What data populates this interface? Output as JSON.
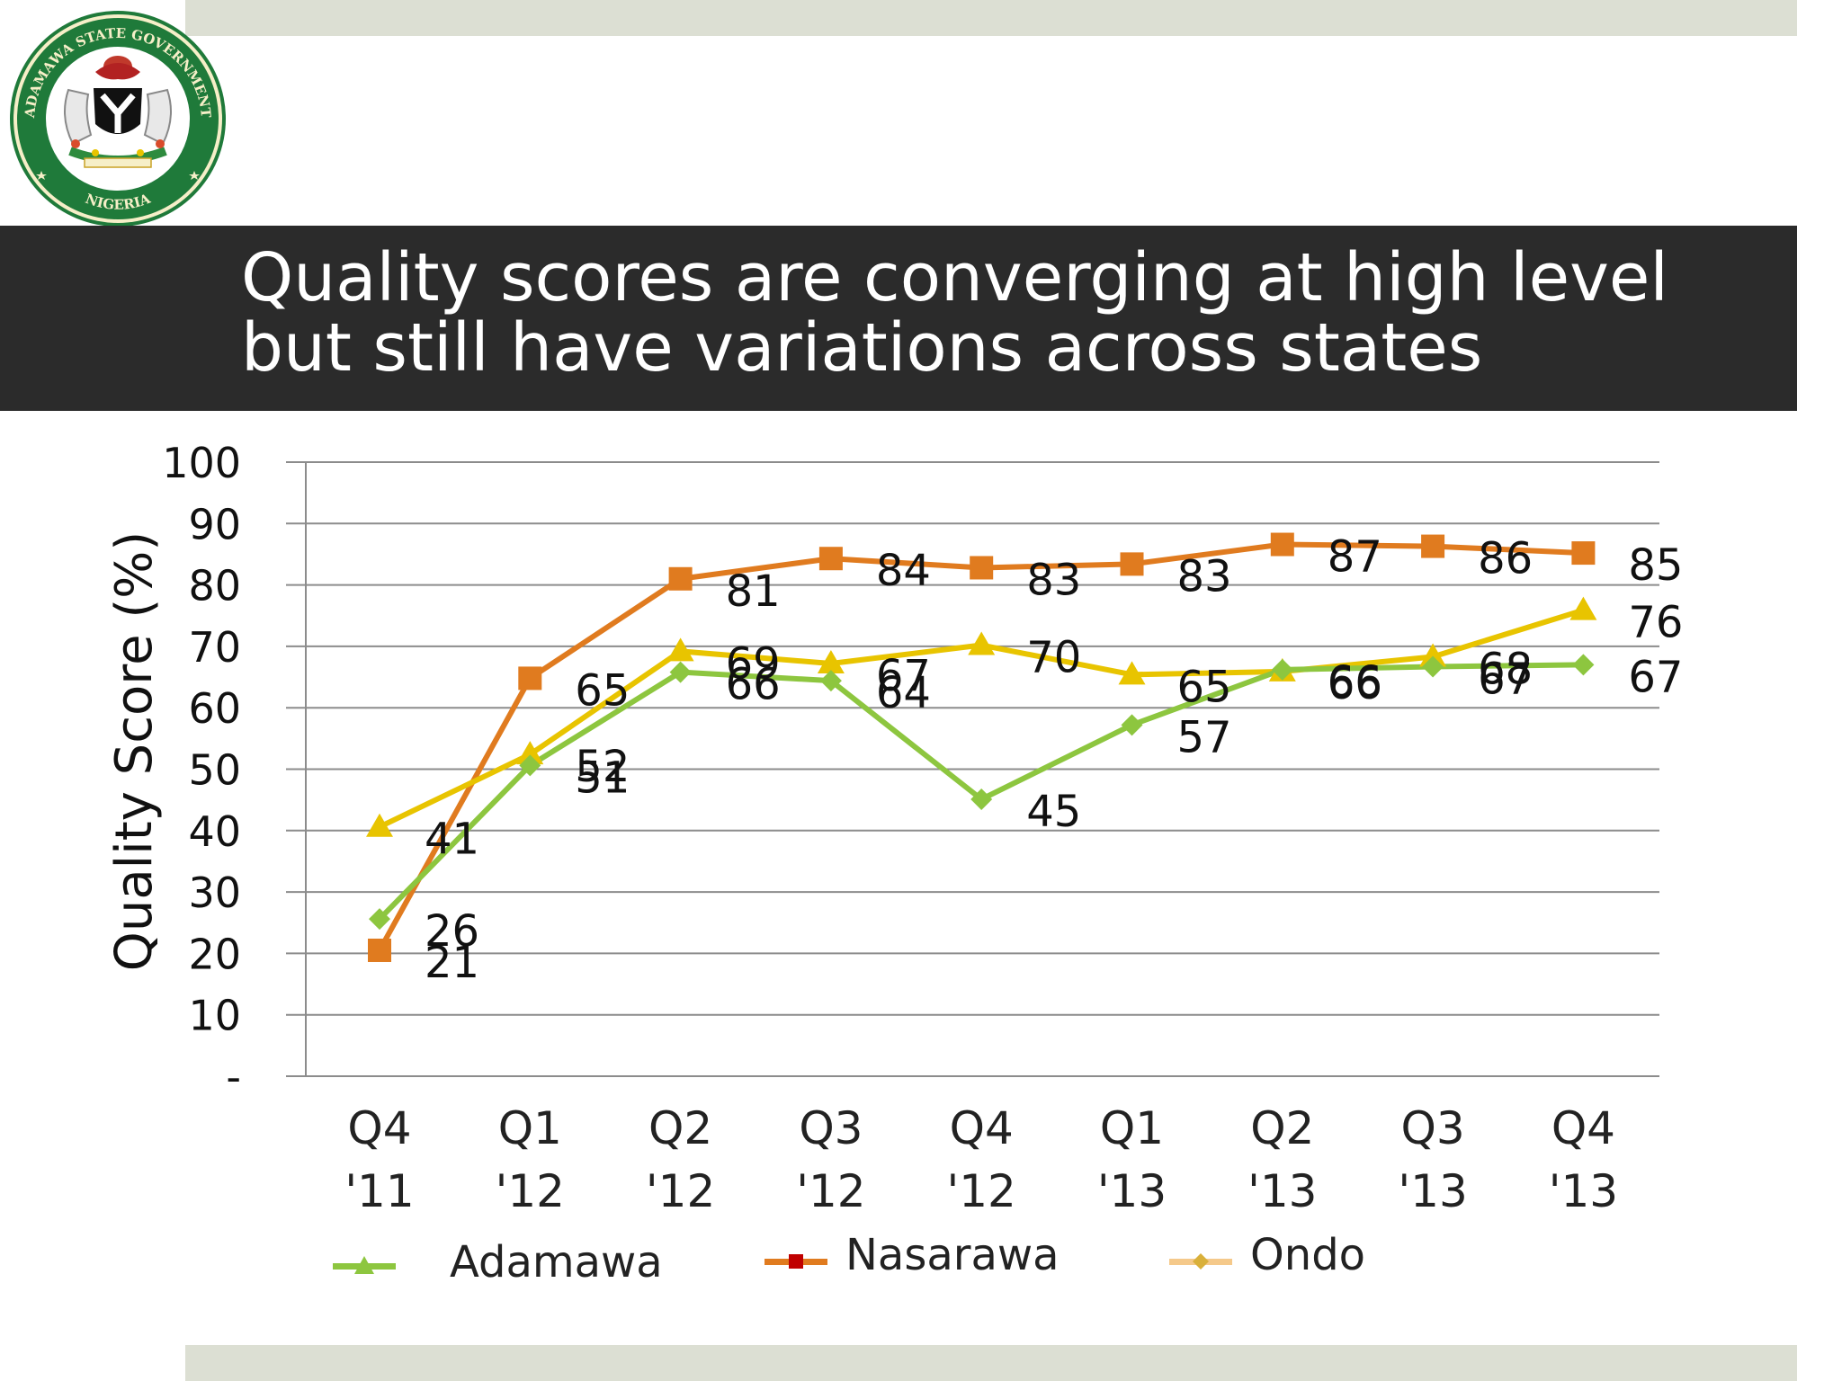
{
  "header": {
    "title": "Quality scores are converging at high level but still have variations across states",
    "seal_text_top": "ADAMAWA STATE GOVERNMENT",
    "seal_text_bottom": "NIGERIA"
  },
  "colors": {
    "title_bar": "#2b2b2b",
    "band": "#dcdfd3",
    "adamawa_line": "#8dc63f",
    "adamawa_marker": "#8dc63f",
    "nasarawa_line": "#e07b1f",
    "nasarawa_marker": "#e07b1f",
    "ondo_line": "#e8c400",
    "ondo_marker": "#e8c400",
    "legend_adamawa": "#8dc63f",
    "legend_nasarawa": "#e07b1f",
    "legend_nasarawa_marker": "#c00000",
    "legend_ondo": "#f5c98a",
    "legend_ondo_marker": "#d9b03a"
  },
  "chart_data": {
    "type": "line",
    "ylabel": "Quality Score (%)",
    "xlabel": "",
    "ylim": [
      0,
      100
    ],
    "yticks": [
      "-",
      "10",
      "20",
      "30",
      "40",
      "50",
      "60",
      "70",
      "80",
      "90",
      "100"
    ],
    "grid": true,
    "categories": [
      [
        "Q4",
        "'11"
      ],
      [
        "Q1",
        "'12"
      ],
      [
        "Q2",
        "'12"
      ],
      [
        "Q3",
        "'12"
      ],
      [
        "Q4",
        "'12"
      ],
      [
        "Q1",
        "'13"
      ],
      [
        "Q2",
        "'13"
      ],
      [
        "Q3",
        "'13"
      ],
      [
        "Q4",
        "'13"
      ]
    ],
    "series": [
      {
        "name": "Nasarawa",
        "marker": "square",
        "values": [
          20.5,
          64.8,
          81,
          84.3,
          82.8,
          83.4,
          86.6,
          86.3,
          85.2
        ],
        "labels": [
          "21",
          "65",
          "81",
          "84",
          "83",
          "83",
          "87",
          "86",
          "85"
        ]
      },
      {
        "name": "Ondo",
        "marker": "triangle",
        "values": [
          40.6,
          52.4,
          69.2,
          67.2,
          70.2,
          65.4,
          65.9,
          68.3,
          75.9
        ],
        "labels": [
          "41",
          "52",
          "69",
          "67",
          "70",
          "65",
          "66",
          "68",
          "76"
        ]
      },
      {
        "name": "Adamawa",
        "marker": "diamond",
        "values": [
          25.6,
          50.6,
          65.8,
          64.4,
          45.1,
          57.2,
          66.2,
          66.7,
          67.0
        ],
        "labels": [
          "26",
          "51",
          "66",
          "64",
          "45",
          "57",
          "66",
          "67",
          "67"
        ]
      }
    ],
    "legend": {
      "position": "bottom",
      "items": [
        "Adamawa",
        "Nasarawa",
        "Ondo"
      ]
    }
  }
}
